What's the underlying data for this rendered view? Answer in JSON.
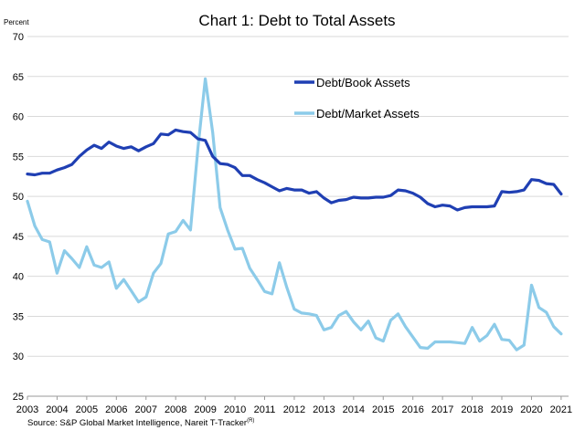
{
  "chart_data": {
    "type": "line",
    "title": "Chart 1: Debt to Total Assets",
    "ylabel": "Percent",
    "xlabel": "",
    "ylim": [
      25,
      70
    ],
    "yticks": [
      25,
      30,
      35,
      40,
      45,
      50,
      55,
      60,
      65,
      70
    ],
    "xlim": [
      2003,
      2021.25
    ],
    "xtick_labels": [
      "2003",
      "2004",
      "2005",
      "2006",
      "2007",
      "2008",
      "2009",
      "2010",
      "2011",
      "2012",
      "2013",
      "2014",
      "2015",
      "2016",
      "2017",
      "2018",
      "2019",
      "2020",
      "2021"
    ],
    "grid": true,
    "legend_position": "top-right",
    "source": "Source: S&P Global Market Intelligence, Nareit T-Tracker",
    "source_superscript": "(R)",
    "series": [
      {
        "name": "Debt/Book Assets",
        "color": "#1f3fb3",
        "x_start": 2003.0,
        "x_step": 0.25,
        "values": [
          52.8,
          52.7,
          52.9,
          52.9,
          53.3,
          53.6,
          54.0,
          55.0,
          55.8,
          56.4,
          56.0,
          56.8,
          56.3,
          56.0,
          56.2,
          55.7,
          56.2,
          56.6,
          57.8,
          57.7,
          58.3,
          58.1,
          58.0,
          57.2,
          57.0,
          55.0,
          54.1,
          54.0,
          53.6,
          52.6,
          52.6,
          52.1,
          51.7,
          51.2,
          50.7,
          51.0,
          50.8,
          50.8,
          50.4,
          50.6,
          49.8,
          49.2,
          49.5,
          49.6,
          49.9,
          49.8,
          49.8,
          49.9,
          49.9,
          50.1,
          50.8,
          50.7,
          50.4,
          49.9,
          49.1,
          48.7,
          48.9,
          48.8,
          48.3,
          48.6,
          48.7,
          48.7,
          48.7,
          48.8,
          50.6,
          50.5,
          50.6,
          50.8,
          52.1,
          52.0,
          51.6,
          51.5,
          50.3
        ]
      },
      {
        "name": "Debt/Market Assets",
        "color": "#8ccbe9",
        "x_start": 2003.0,
        "x_step": 0.25,
        "values": [
          49.4,
          46.3,
          44.6,
          44.3,
          40.4,
          43.2,
          42.2,
          41.1,
          43.7,
          41.4,
          41.1,
          41.8,
          38.5,
          39.6,
          38.2,
          36.8,
          37.4,
          40.4,
          41.6,
          45.3,
          45.6,
          47.0,
          45.8,
          56.0,
          64.7,
          58.0,
          48.6,
          45.8,
          43.4,
          43.5,
          41.0,
          39.6,
          38.1,
          37.8,
          41.7,
          38.6,
          35.9,
          35.4,
          35.3,
          35.1,
          33.3,
          33.6,
          35.1,
          35.6,
          34.3,
          33.3,
          34.4,
          32.3,
          31.9,
          34.5,
          35.3,
          33.7,
          32.4,
          31.1,
          31.0,
          31.8,
          31.8,
          31.8,
          31.7,
          31.6,
          33.6,
          31.9,
          32.6,
          34.0,
          32.1,
          32.0,
          30.8,
          31.4,
          38.9,
          36.1,
          35.5,
          33.7,
          32.8
        ]
      }
    ]
  }
}
